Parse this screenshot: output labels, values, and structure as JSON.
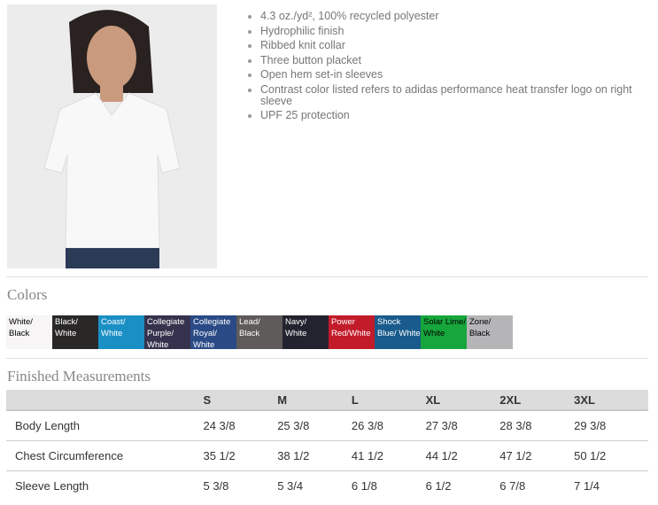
{
  "product": {
    "image_alt": "woman wearing white polo shirt"
  },
  "features": [
    "4.3 oz./yd², 100% recycled polyester",
    "Hydrophilic finish",
    "Ribbed knit collar",
    "Three button placket",
    "Open hem set-in sleeves",
    "Contrast color listed refers to adidas performance heat transfer logo on right sleeve",
    "UPF 25 protection"
  ],
  "colors": {
    "title": "Colors",
    "swatches": [
      {
        "label": "White/ Black",
        "bg": "#f7f5f5",
        "fg": "#000000"
      },
      {
        "label": "Black/ White",
        "bg": "#2a2727",
        "fg": "#ffffff"
      },
      {
        "label": "Coast/ White",
        "bg": "#1a8fc4",
        "fg": "#ffffff"
      },
      {
        "label": "Collegiate Purple/ White",
        "bg": "#36324d",
        "fg": "#ffffff"
      },
      {
        "label": "Collegiate Royal/ White",
        "bg": "#2a4a86",
        "fg": "#ffffff"
      },
      {
        "label": "Lead/ Black",
        "bg": "#5f5b5a",
        "fg": "#ffffff"
      },
      {
        "label": "Navy/ White",
        "bg": "#23232f",
        "fg": "#ffffff"
      },
      {
        "label": "Power Red/White",
        "bg": "#c21b2a",
        "fg": "#ffffff"
      },
      {
        "label": "Shock Blue/ White",
        "bg": "#195b8c",
        "fg": "#ffffff"
      },
      {
        "label": "Solar Lime/ White",
        "bg": "#17a63c",
        "fg": "#000000"
      },
      {
        "label": "Zone/ Black",
        "bg": "#b5b5b8",
        "fg": "#000000"
      }
    ]
  },
  "measurements": {
    "title": "Finished Measurements",
    "sizes": [
      "S",
      "M",
      "L",
      "XL",
      "2XL",
      "3XL"
    ],
    "rows": [
      {
        "label": "Body Length",
        "values": [
          "24 3/8",
          "25 3/8",
          "26 3/8",
          "27 3/8",
          "28 3/8",
          "29 3/8"
        ]
      },
      {
        "label": "Chest Circumference",
        "values": [
          "35 1/2",
          "38 1/2",
          "41 1/2",
          "44 1/2",
          "47 1/2",
          "50 1/2"
        ]
      },
      {
        "label": "Sleeve Length",
        "values": [
          "5 3/8",
          "5 3/4",
          "6 1/8",
          "6 1/2",
          "6 7/8",
          "7 1/4"
        ]
      }
    ]
  }
}
